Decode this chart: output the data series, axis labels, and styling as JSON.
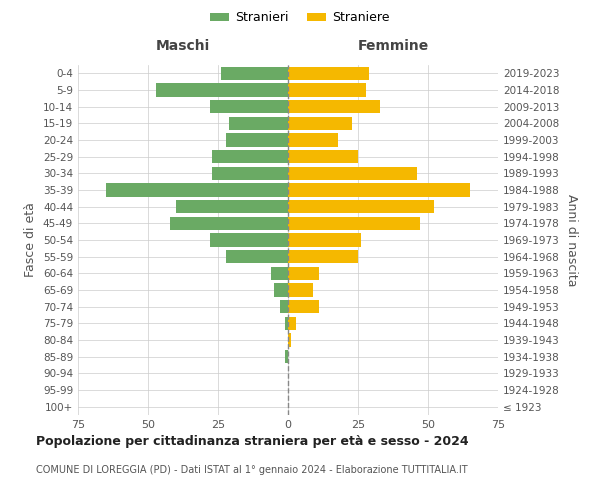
{
  "age_groups": [
    "100+",
    "95-99",
    "90-94",
    "85-89",
    "80-84",
    "75-79",
    "70-74",
    "65-69",
    "60-64",
    "55-59",
    "50-54",
    "45-49",
    "40-44",
    "35-39",
    "30-34",
    "25-29",
    "20-24",
    "15-19",
    "10-14",
    "5-9",
    "0-4"
  ],
  "birth_years": [
    "≤ 1923",
    "1924-1928",
    "1929-1933",
    "1934-1938",
    "1939-1943",
    "1944-1948",
    "1949-1953",
    "1954-1958",
    "1959-1963",
    "1964-1968",
    "1969-1973",
    "1974-1978",
    "1979-1983",
    "1984-1988",
    "1989-1993",
    "1994-1998",
    "1999-2003",
    "2004-2008",
    "2009-2013",
    "2014-2018",
    "2019-2023"
  ],
  "maschi": [
    0,
    0,
    0,
    1,
    0,
    1,
    3,
    5,
    6,
    22,
    28,
    42,
    40,
    65,
    27,
    27,
    22,
    21,
    28,
    47,
    24
  ],
  "femmine": [
    0,
    0,
    0,
    0,
    1,
    3,
    11,
    9,
    11,
    25,
    26,
    47,
    52,
    65,
    46,
    25,
    18,
    23,
    33,
    28,
    29
  ],
  "color_maschi": "#6aaa64",
  "color_femmine": "#f5b800",
  "title": "Popolazione per cittadinanza straniera per età e sesso - 2024",
  "subtitle": "COMUNE DI LOREGGIA (PD) - Dati ISTAT al 1° gennaio 2024 - Elaborazione TUTTITALIA.IT",
  "xlabel_left": "Maschi",
  "xlabel_right": "Femmine",
  "ylabel_left": "Fasce di età",
  "ylabel_right": "Anni di nascita",
  "xlim": 75,
  "legend_stranieri": "Stranieri",
  "legend_straniere": "Straniere",
  "background_color": "#ffffff",
  "grid_color": "#cccccc"
}
